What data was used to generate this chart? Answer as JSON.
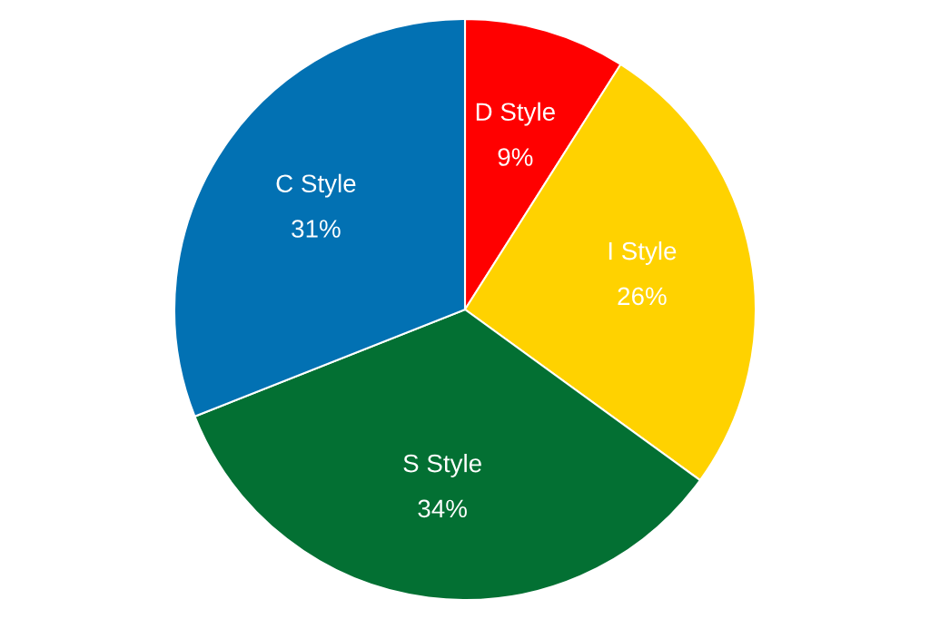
{
  "chart_data": {
    "type": "pie",
    "categories": [
      "D Style",
      "I Style",
      "S Style",
      "C Style"
    ],
    "values": [
      9,
      26,
      34,
      31
    ],
    "value_labels": [
      "9%",
      "26%",
      "34%",
      "31%"
    ],
    "colors": [
      "#ff0000",
      "#ffd200",
      "#037033",
      "#0271b3"
    ],
    "legend": false
  }
}
